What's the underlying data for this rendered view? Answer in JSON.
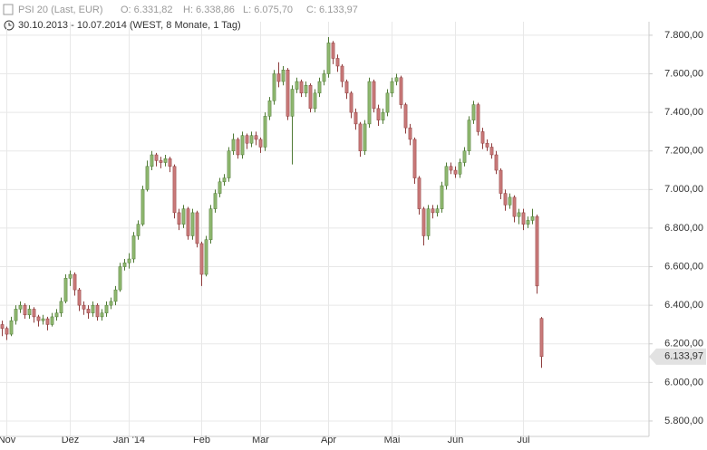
{
  "header": {
    "instrument": "PSI 20 (Last, EUR)",
    "open": "O: 6.331,82",
    "high": "H: 6.338,86",
    "low": "L: 6.075,70",
    "close": "C: 6.133,97",
    "range": "30.10.2013 - 10.07.2014 (WEST, 8 Monate, 1 Tag)"
  },
  "chart_data": {
    "type": "candlestick",
    "up_color": "#8fb870",
    "down_color": "#c97a7a",
    "grid": true,
    "ylim": [
      5720,
      7870
    ],
    "yticks": [
      {
        "value": 5800,
        "label": "5.800,00"
      },
      {
        "value": 6000,
        "label": "6.000,00"
      },
      {
        "value": 6200,
        "label": "6.200,00"
      },
      {
        "value": 6400,
        "label": "6.400,00"
      },
      {
        "value": 6600,
        "label": "6.600,00"
      },
      {
        "value": 6800,
        "label": "6.800,00"
      },
      {
        "value": 7000,
        "label": "7.000,00"
      },
      {
        "value": 7200,
        "label": "7.200,00"
      },
      {
        "value": 7400,
        "label": "7.400,00"
      },
      {
        "value": 7600,
        "label": "7.600,00"
      },
      {
        "value": 7800,
        "label": "7.800,00"
      }
    ],
    "last_value_label": "6.133,97",
    "categories": [
      null,
      "Nov",
      null,
      null,
      null,
      null,
      null,
      null,
      null,
      null,
      null,
      null,
      null,
      null,
      null,
      "Dez",
      null,
      null,
      null,
      null,
      null,
      null,
      null,
      null,
      null,
      null,
      null,
      null,
      "Jan '14",
      null,
      null,
      null,
      null,
      null,
      null,
      null,
      null,
      null,
      null,
      null,
      null,
      null,
      null,
      null,
      "Feb",
      null,
      null,
      null,
      null,
      null,
      null,
      null,
      null,
      null,
      null,
      null,
      null,
      "Mär",
      null,
      null,
      null,
      null,
      null,
      null,
      null,
      null,
      null,
      null,
      null,
      null,
      null,
      null,
      "Apr",
      null,
      null,
      null,
      null,
      null,
      null,
      null,
      null,
      null,
      null,
      null,
      null,
      null,
      "Mai",
      null,
      null,
      null,
      null,
      null,
      null,
      null,
      null,
      null,
      null,
      null,
      null,
      null,
      "Jun",
      null,
      null,
      null,
      null,
      null,
      null,
      null,
      null,
      null,
      null,
      null,
      null,
      null,
      null,
      "Jul",
      null,
      null,
      null,
      null
    ],
    "open": [
      6300,
      6280,
      6250,
      6320,
      6380,
      6400,
      6350,
      6380,
      6340,
      6320,
      6330,
      6300,
      6340,
      6360,
      6420,
      6540,
      6560,
      6480,
      6400,
      6380,
      6360,
      6400,
      6340,
      6360,
      6400,
      6420,
      6480,
      6600,
      6620,
      6640,
      6760,
      6820,
      7000,
      7120,
      7180,
      7150,
      7140,
      7160,
      7120,
      6880,
      6820,
      6900,
      6760,
      6880,
      6720,
      6560,
      6740,
      6900,
      6980,
      7040,
      7060,
      7200,
      7260,
      7180,
      7280,
      7240,
      7280,
      7260,
      7220,
      7380,
      7460,
      7600,
      7560,
      7620,
      7380,
      7520,
      7560,
      7500,
      7540,
      7420,
      7500,
      7560,
      7600,
      7760,
      7680,
      7640,
      7560,
      7500,
      7400,
      7340,
      7200,
      7340,
      7560,
      7420,
      7360,
      7400,
      7500,
      7560,
      7580,
      7440,
      7320,
      7260,
      7060,
      6900,
      6760,
      6900,
      6880,
      6900,
      7020,
      7120,
      7100,
      7080,
      7140,
      7200,
      7360,
      7440,
      7300,
      7240,
      7220,
      7180,
      7100,
      6980,
      6920,
      6960,
      6860,
      6880,
      6820,
      6840,
      6860,
      6331.82
    ],
    "high": [
      6320,
      6290,
      6340,
      6400,
      6420,
      6410,
      6400,
      6390,
      6350,
      6350,
      6340,
      6360,
      6380,
      6440,
      6560,
      6580,
      6570,
      6490,
      6420,
      6400,
      6420,
      6410,
      6380,
      6420,
      6440,
      6500,
      6620,
      6640,
      6670,
      6780,
      6840,
      7020,
      7150,
      7200,
      7190,
      7170,
      7180,
      7170,
      7130,
      6900,
      6920,
      6910,
      6900,
      6890,
      6730,
      6760,
      6920,
      7000,
      7060,
      7080,
      7220,
      7290,
      7270,
      7300,
      7290,
      7300,
      7300,
      7270,
      7400,
      7480,
      7620,
      7660,
      7640,
      7630,
      7540,
      7580,
      7570,
      7560,
      7550,
      7520,
      7580,
      7620,
      7790,
      7770,
      7700,
      7650,
      7570,
      7510,
      7420,
      7350,
      7360,
      7580,
      7570,
      7440,
      7420,
      7520,
      7580,
      7600,
      7590,
      7450,
      7340,
      7270,
      7070,
      6910,
      6920,
      6920,
      6920,
      7040,
      7140,
      7140,
      7120,
      7160,
      7220,
      7380,
      7460,
      7450,
      7320,
      7260,
      7240,
      7200,
      7110,
      7000,
      6980,
      6970,
      6900,
      6900,
      6860,
      6900,
      6870,
      6338.86
    ],
    "low": [
      6240,
      6220,
      6240,
      6300,
      6360,
      6330,
      6330,
      6310,
      6290,
      6300,
      6270,
      6290,
      6320,
      6340,
      6410,
      6500,
      6450,
      6370,
      6350,
      6330,
      6340,
      6320,
      6320,
      6340,
      6380,
      6400,
      6470,
      6580,
      6590,
      6620,
      6740,
      6810,
      6990,
      7100,
      7120,
      7110,
      7120,
      7090,
      6850,
      6790,
      6800,
      6740,
      6740,
      6700,
      6500,
      6550,
      6720,
      6880,
      6960,
      7020,
      7040,
      7180,
      7160,
      7160,
      7210,
      7220,
      7230,
      7190,
      7200,
      7360,
      7440,
      7530,
      7540,
      7360,
      7130,
      7500,
      7480,
      7480,
      7400,
      7400,
      7480,
      7540,
      7580,
      7650,
      7610,
      7530,
      7470,
      7370,
      7310,
      7170,
      7180,
      7320,
      7400,
      7330,
      7340,
      7380,
      7480,
      7540,
      7420,
      7290,
      7230,
      7030,
      6870,
      6710,
      6740,
      6850,
      6860,
      6880,
      7000,
      7080,
      7060,
      7060,
      7120,
      7180,
      7340,
      7280,
      7210,
      7200,
      7160,
      7080,
      6950,
      6890,
      6900,
      6830,
      6820,
      6790,
      6800,
      6820,
      6460,
      6075.7
    ],
    "close": [
      6280,
      6250,
      6320,
      6380,
      6400,
      6350,
      6380,
      6340,
      6320,
      6330,
      6300,
      6340,
      6360,
      6420,
      6540,
      6560,
      6480,
      6400,
      6380,
      6360,
      6400,
      6340,
      6360,
      6400,
      6420,
      6480,
      6600,
      6620,
      6640,
      6760,
      6820,
      7000,
      7120,
      7180,
      7150,
      7140,
      7160,
      7120,
      6880,
      6820,
      6900,
      6760,
      6880,
      6720,
      6560,
      6740,
      6900,
      6980,
      7040,
      7060,
      7200,
      7260,
      7180,
      7280,
      7240,
      7280,
      7260,
      7220,
      7380,
      7460,
      7600,
      7560,
      7620,
      7380,
      7520,
      7560,
      7500,
      7540,
      7420,
      7500,
      7560,
      7600,
      7760,
      7680,
      7640,
      7560,
      7500,
      7400,
      7340,
      7200,
      7340,
      7560,
      7420,
      7360,
      7400,
      7500,
      7560,
      7580,
      7440,
      7320,
      7260,
      7060,
      6900,
      6760,
      6900,
      6880,
      6900,
      7020,
      7120,
      7100,
      7080,
      7140,
      7200,
      7360,
      7440,
      7300,
      7240,
      7220,
      7180,
      7100,
      6980,
      6920,
      6960,
      6860,
      6880,
      6820,
      6840,
      6860,
      6500,
      6133.97
    ]
  }
}
